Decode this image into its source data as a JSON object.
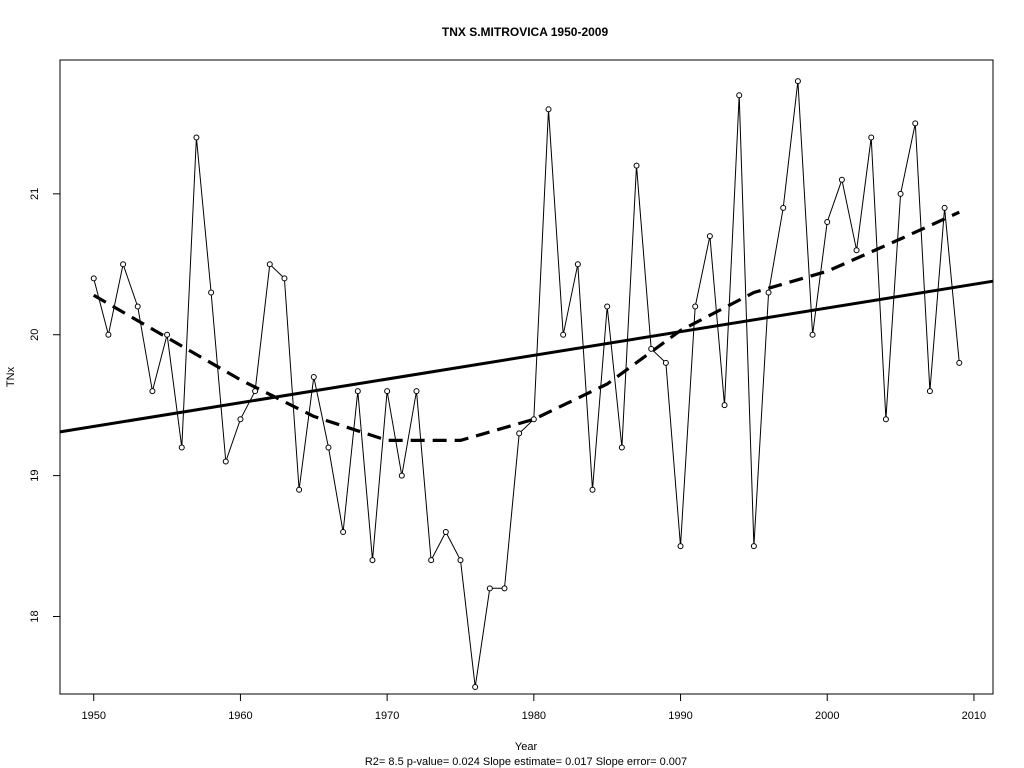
{
  "chart_data": {
    "type": "line",
    "title": "TNX   S.MITROVICA 1950-2009",
    "xlabel": "Year",
    "ylabel": "TNx",
    "footnote": "R2= 8.5  p-value= 0.024  Slope estimate= 0.017  Slope error= 0.007",
    "xlim": [
      1947.7,
      2011.3
    ],
    "ylim": [
      17.45,
      21.95
    ],
    "x_ticks": [
      1950,
      1960,
      1970,
      1980,
      1990,
      2000,
      2010
    ],
    "y_ticks": [
      18,
      19,
      20,
      21
    ],
    "grid": false,
    "series": [
      {
        "style": "line-with-open-circles",
        "x": [
          1950,
          1951,
          1952,
          1953,
          1954,
          1955,
          1956,
          1957,
          1958,
          1959,
          1960,
          1961,
          1962,
          1963,
          1964,
          1965,
          1966,
          1967,
          1968,
          1969,
          1970,
          1971,
          1972,
          1973,
          1974,
          1975,
          1976,
          1977,
          1978,
          1979,
          1980,
          1981,
          1982,
          1983,
          1984,
          1985,
          1986,
          1987,
          1988,
          1989,
          1990,
          1991,
          1992,
          1993,
          1994,
          1995,
          1996,
          1997,
          1998,
          1999,
          2000,
          2001,
          2002,
          2003,
          2004,
          2005,
          2006,
          2007,
          2008,
          2009
        ],
        "values": [
          20.4,
          20.0,
          20.5,
          20.2,
          19.6,
          20.0,
          19.2,
          21.4,
          20.3,
          19.1,
          19.4,
          19.6,
          20.5,
          20.4,
          18.9,
          19.7,
          19.2,
          18.6,
          19.6,
          18.4,
          19.6,
          19.0,
          19.6,
          18.4,
          18.6,
          18.4,
          17.5,
          18.2,
          18.2,
          19.3,
          19.4,
          21.6,
          20.0,
          20.5,
          18.9,
          20.2,
          19.2,
          21.2,
          19.9,
          19.8,
          18.5,
          20.2,
          20.7,
          19.5,
          21.7,
          18.5,
          20.3,
          20.9,
          21.8,
          20.0,
          20.8,
          21.1,
          20.6,
          21.4,
          19.4,
          21.0,
          21.5,
          19.6,
          20.9,
          19.8
        ]
      },
      {
        "style": "solid-thick-linear-trend",
        "x": [
          1947.7,
          2011.3
        ],
        "values": [
          19.31,
          20.38
        ]
      },
      {
        "style": "dashed-thick-smooth-fit",
        "x": [
          1950,
          1955,
          1960,
          1965,
          1970,
          1975,
          1980,
          1985,
          1990,
          1995,
          2000,
          2005,
          2009
        ],
        "values": [
          20.28,
          19.98,
          19.68,
          19.42,
          19.25,
          19.25,
          19.4,
          19.65,
          20.03,
          20.3,
          20.45,
          20.68,
          20.87
        ]
      }
    ]
  }
}
